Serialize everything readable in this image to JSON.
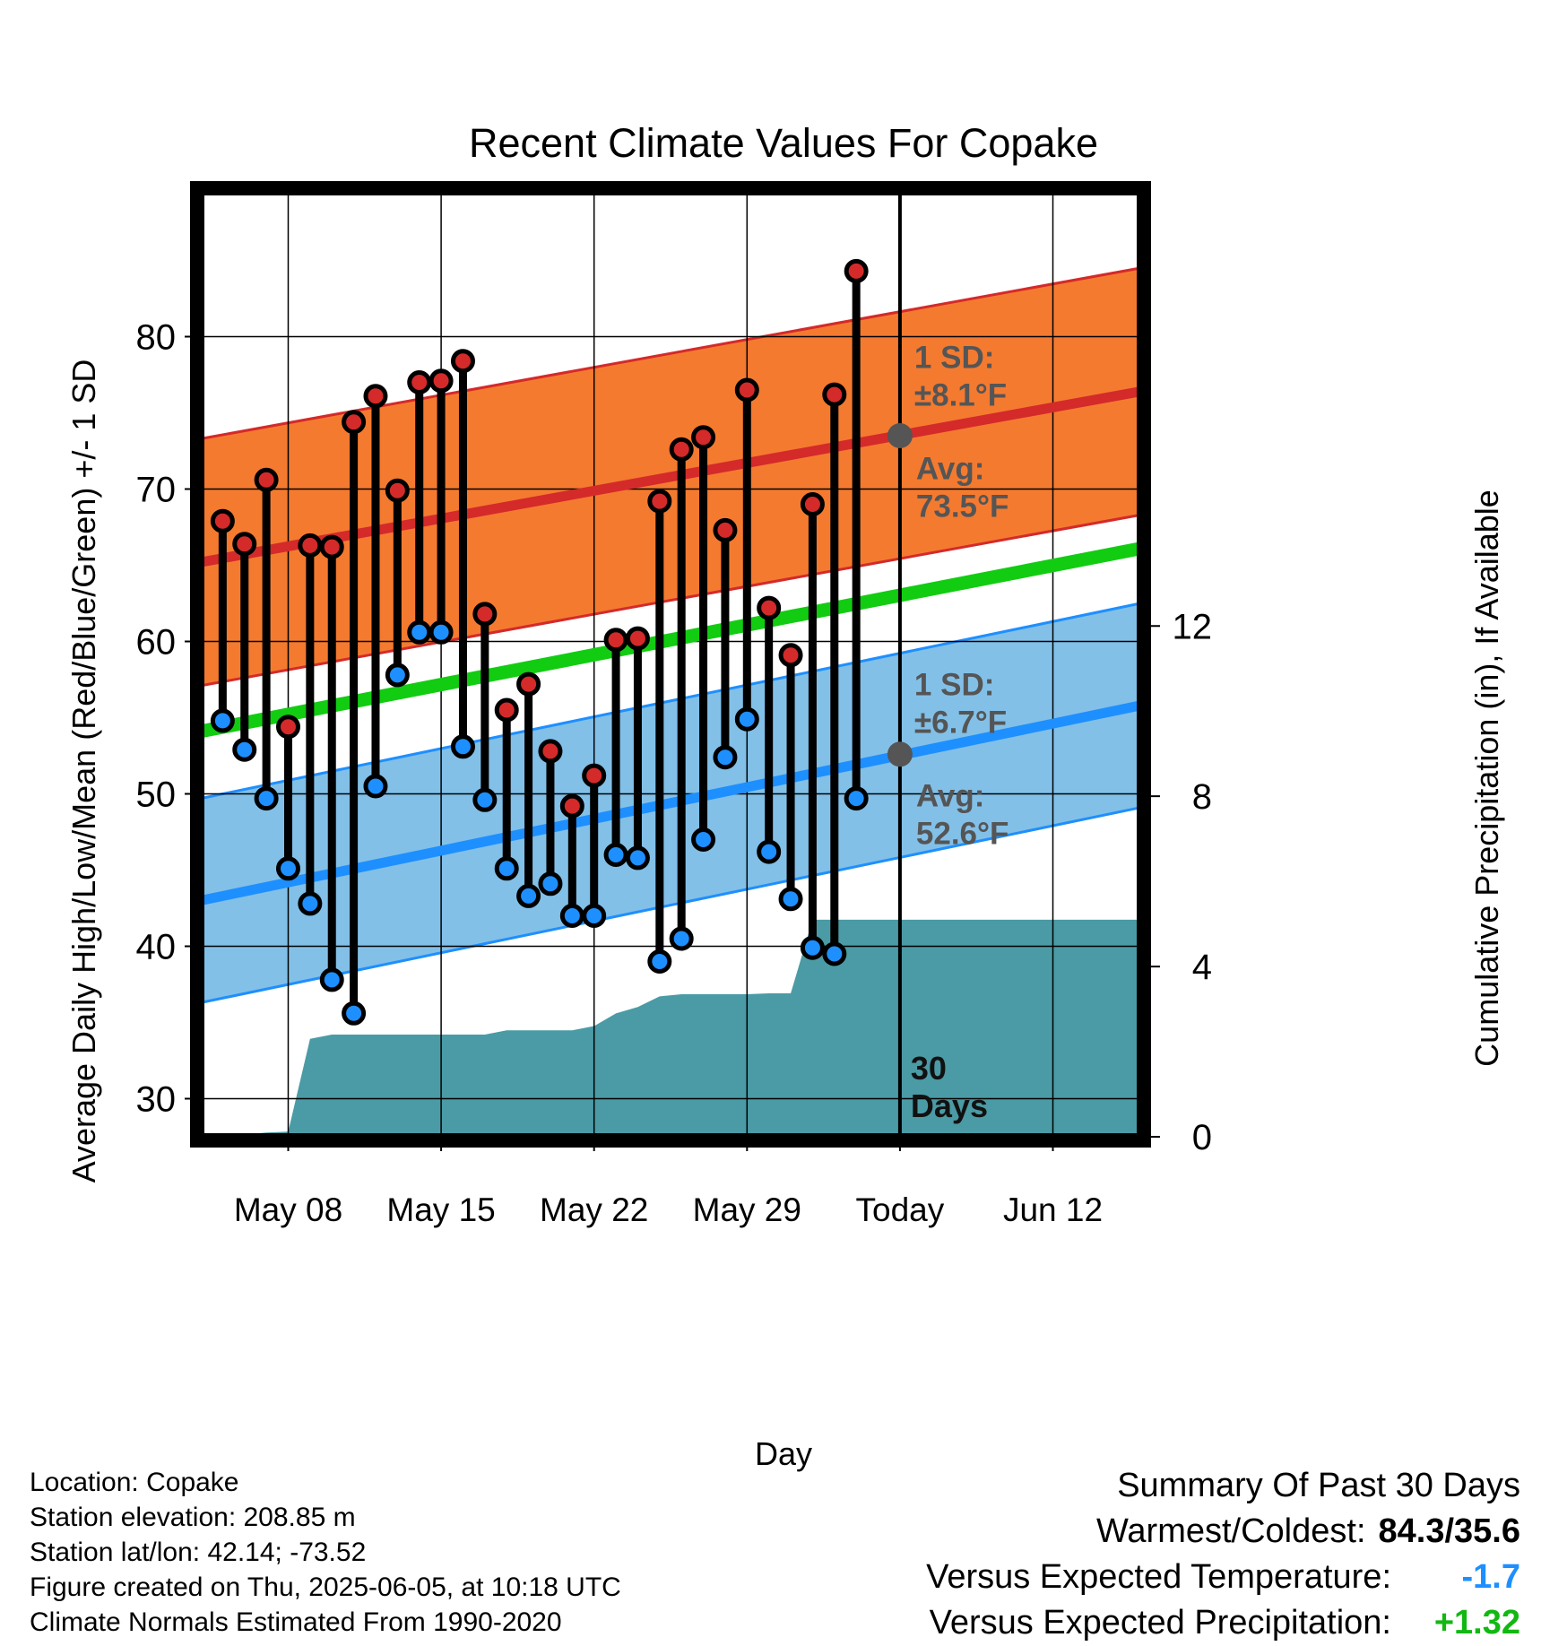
{
  "chart_data": {
    "type": "line",
    "title": "Recent Climate Values For Copake",
    "xlabel": "Day",
    "ylabel": "Average Daily High/Low/Mean (Red/Blue/Green) +/- 1 SD",
    "y2label": "Cumulative Precipitation (in), If Available",
    "xaxis": {
      "start_date": "2025-05-04",
      "end_date": "2025-06-16",
      "tick_labels": [
        "May 08",
        "May 15",
        "May 22",
        "May 29",
        "Today",
        "Jun 12"
      ],
      "tick_dates": [
        "2025-05-08",
        "2025-05-15",
        "2025-05-22",
        "2025-05-29",
        "2025-06-05",
        "2025-06-12"
      ]
    },
    "ylim": [
      27.5,
      89.5
    ],
    "yticks": [
      30,
      40,
      50,
      60,
      70,
      80
    ],
    "y2lim": [
      0,
      22.2
    ],
    "y2ticks": [
      0,
      4,
      8,
      12
    ],
    "today_marker": {
      "date": "2025-06-05",
      "label": "30 Days"
    },
    "grid": true,
    "normals": {
      "high_mean": {
        "start": 65.2,
        "end": 76.4,
        "color": "#d42a2a"
      },
      "high_sd_band": {
        "sd": 8.1,
        "color": "#f47a30"
      },
      "low_mean": {
        "start": 43.0,
        "end": 55.8,
        "color": "#1e8fff"
      },
      "low_sd_band": {
        "sd": 6.7,
        "color": "#82c0e8"
      },
      "mean": {
        "start": 54.1,
        "end": 66.1,
        "color": "#12cc12"
      }
    },
    "annotations": {
      "high": {
        "sd_title": "1 SD:",
        "sd_value": "±8.1",
        "avg_title": "Avg:",
        "avg_value": "73.5",
        "unit": "°F",
        "avg_date": "2025-06-05",
        "avg": 73.5
      },
      "low": {
        "sd_title": "1 SD:",
        "sd_value": "±6.7",
        "avg_title": "Avg:",
        "avg_value": "52.6",
        "unit": "°F",
        "avg_date": "2025-06-05",
        "avg": 52.6
      }
    },
    "series": [
      {
        "name": "High",
        "color": "#d42a2a",
        "dates": [
          "2025-05-05",
          "2025-05-06",
          "2025-05-07",
          "2025-05-08",
          "2025-05-09",
          "2025-05-10",
          "2025-05-11",
          "2025-05-12",
          "2025-05-13",
          "2025-05-14",
          "2025-05-15",
          "2025-05-16",
          "2025-05-17",
          "2025-05-18",
          "2025-05-19",
          "2025-05-20",
          "2025-05-21",
          "2025-05-22",
          "2025-05-23",
          "2025-05-24",
          "2025-05-25",
          "2025-05-26",
          "2025-05-27",
          "2025-05-28",
          "2025-05-29",
          "2025-05-30",
          "2025-05-31",
          "2025-06-01",
          "2025-06-02",
          "2025-06-03",
          "2025-06-04"
        ],
        "values": [
          67.9,
          66.4,
          70.6,
          54.4,
          66.3,
          66.2,
          74.4,
          76.1,
          69.9,
          77.0,
          77.1,
          78.4,
          61.8,
          55.5,
          57.2,
          52.8,
          49.2,
          51.2,
          60.1,
          60.2,
          69.2,
          72.6,
          73.4,
          67.3,
          76.5,
          62.2,
          59.1,
          69.0,
          76.2,
          84.3,
          null
        ]
      },
      {
        "name": "Low",
        "color": "#1e8fff",
        "dates": [
          "2025-05-05",
          "2025-05-06",
          "2025-05-07",
          "2025-05-08",
          "2025-05-09",
          "2025-05-10",
          "2025-05-11",
          "2025-05-12",
          "2025-05-13",
          "2025-05-14",
          "2025-05-15",
          "2025-05-16",
          "2025-05-17",
          "2025-05-18",
          "2025-05-19",
          "2025-05-20",
          "2025-05-21",
          "2025-05-22",
          "2025-05-23",
          "2025-05-24",
          "2025-05-25",
          "2025-05-26",
          "2025-05-27",
          "2025-05-28",
          "2025-05-29",
          "2025-05-30",
          "2025-05-31",
          "2025-06-01",
          "2025-06-02",
          "2025-06-03",
          "2025-06-04"
        ],
        "values": [
          54.8,
          52.9,
          49.7,
          45.1,
          42.8,
          37.8,
          35.6,
          50.5,
          57.8,
          60.6,
          60.6,
          53.1,
          49.6,
          45.1,
          43.3,
          44.1,
          42.0,
          42.0,
          46.0,
          45.8,
          39.0,
          40.5,
          47.0,
          52.4,
          54.9,
          46.2,
          43.1,
          39.9,
          39.5,
          49.7,
          null
        ]
      }
    ],
    "precipitation": {
      "name": "Cumulative Precipitation",
      "color": "#4a9ba5",
      "unit": "in",
      "dates": [
        "2025-05-04",
        "2025-05-05",
        "2025-05-06",
        "2025-05-07",
        "2025-05-08",
        "2025-05-09",
        "2025-05-10",
        "2025-05-11",
        "2025-05-12",
        "2025-05-13",
        "2025-05-14",
        "2025-05-15",
        "2025-05-16",
        "2025-05-17",
        "2025-05-18",
        "2025-05-19",
        "2025-05-20",
        "2025-05-21",
        "2025-05-22",
        "2025-05-23",
        "2025-05-24",
        "2025-05-25",
        "2025-05-26",
        "2025-05-27",
        "2025-05-28",
        "2025-05-29",
        "2025-05-30",
        "2025-05-31",
        "2025-06-01",
        "2025-06-02",
        "2025-06-03",
        "2025-06-04",
        "2025-06-05",
        "2025-06-16"
      ],
      "values": [
        0.0,
        0.0,
        0.05,
        0.1,
        0.12,
        2.3,
        2.4,
        2.4,
        2.4,
        2.4,
        2.4,
        2.4,
        2.4,
        2.4,
        2.5,
        2.5,
        2.5,
        2.5,
        2.6,
        2.9,
        3.05,
        3.3,
        3.35,
        3.35,
        3.35,
        3.35,
        3.37,
        3.37,
        5.1,
        5.1,
        5.1,
        5.1,
        5.1,
        5.1
      ]
    }
  },
  "info": {
    "location": "Location: Copake",
    "elevation": "Station elevation: 208.85 m",
    "latlon": "Station lat/lon: 42.14; -73.52",
    "created": "Figure created on Thu, 2025-06-05, at 10:18 UTC",
    "normals": "Climate Normals Estimated From 1990-2020"
  },
  "summary": {
    "heading": "Summary Of Past 30 Days",
    "warm_cold_label": "Warmest/Coldest:",
    "warm_cold_value": "84.3/35.6",
    "temp_label": "Versus Expected Temperature:",
    "temp_value": "-1.7",
    "temp_color": "#1e8fff",
    "precip_label": "Versus Expected Precipitation:",
    "precip_value": "+1.32",
    "precip_color": "#12b812"
  }
}
